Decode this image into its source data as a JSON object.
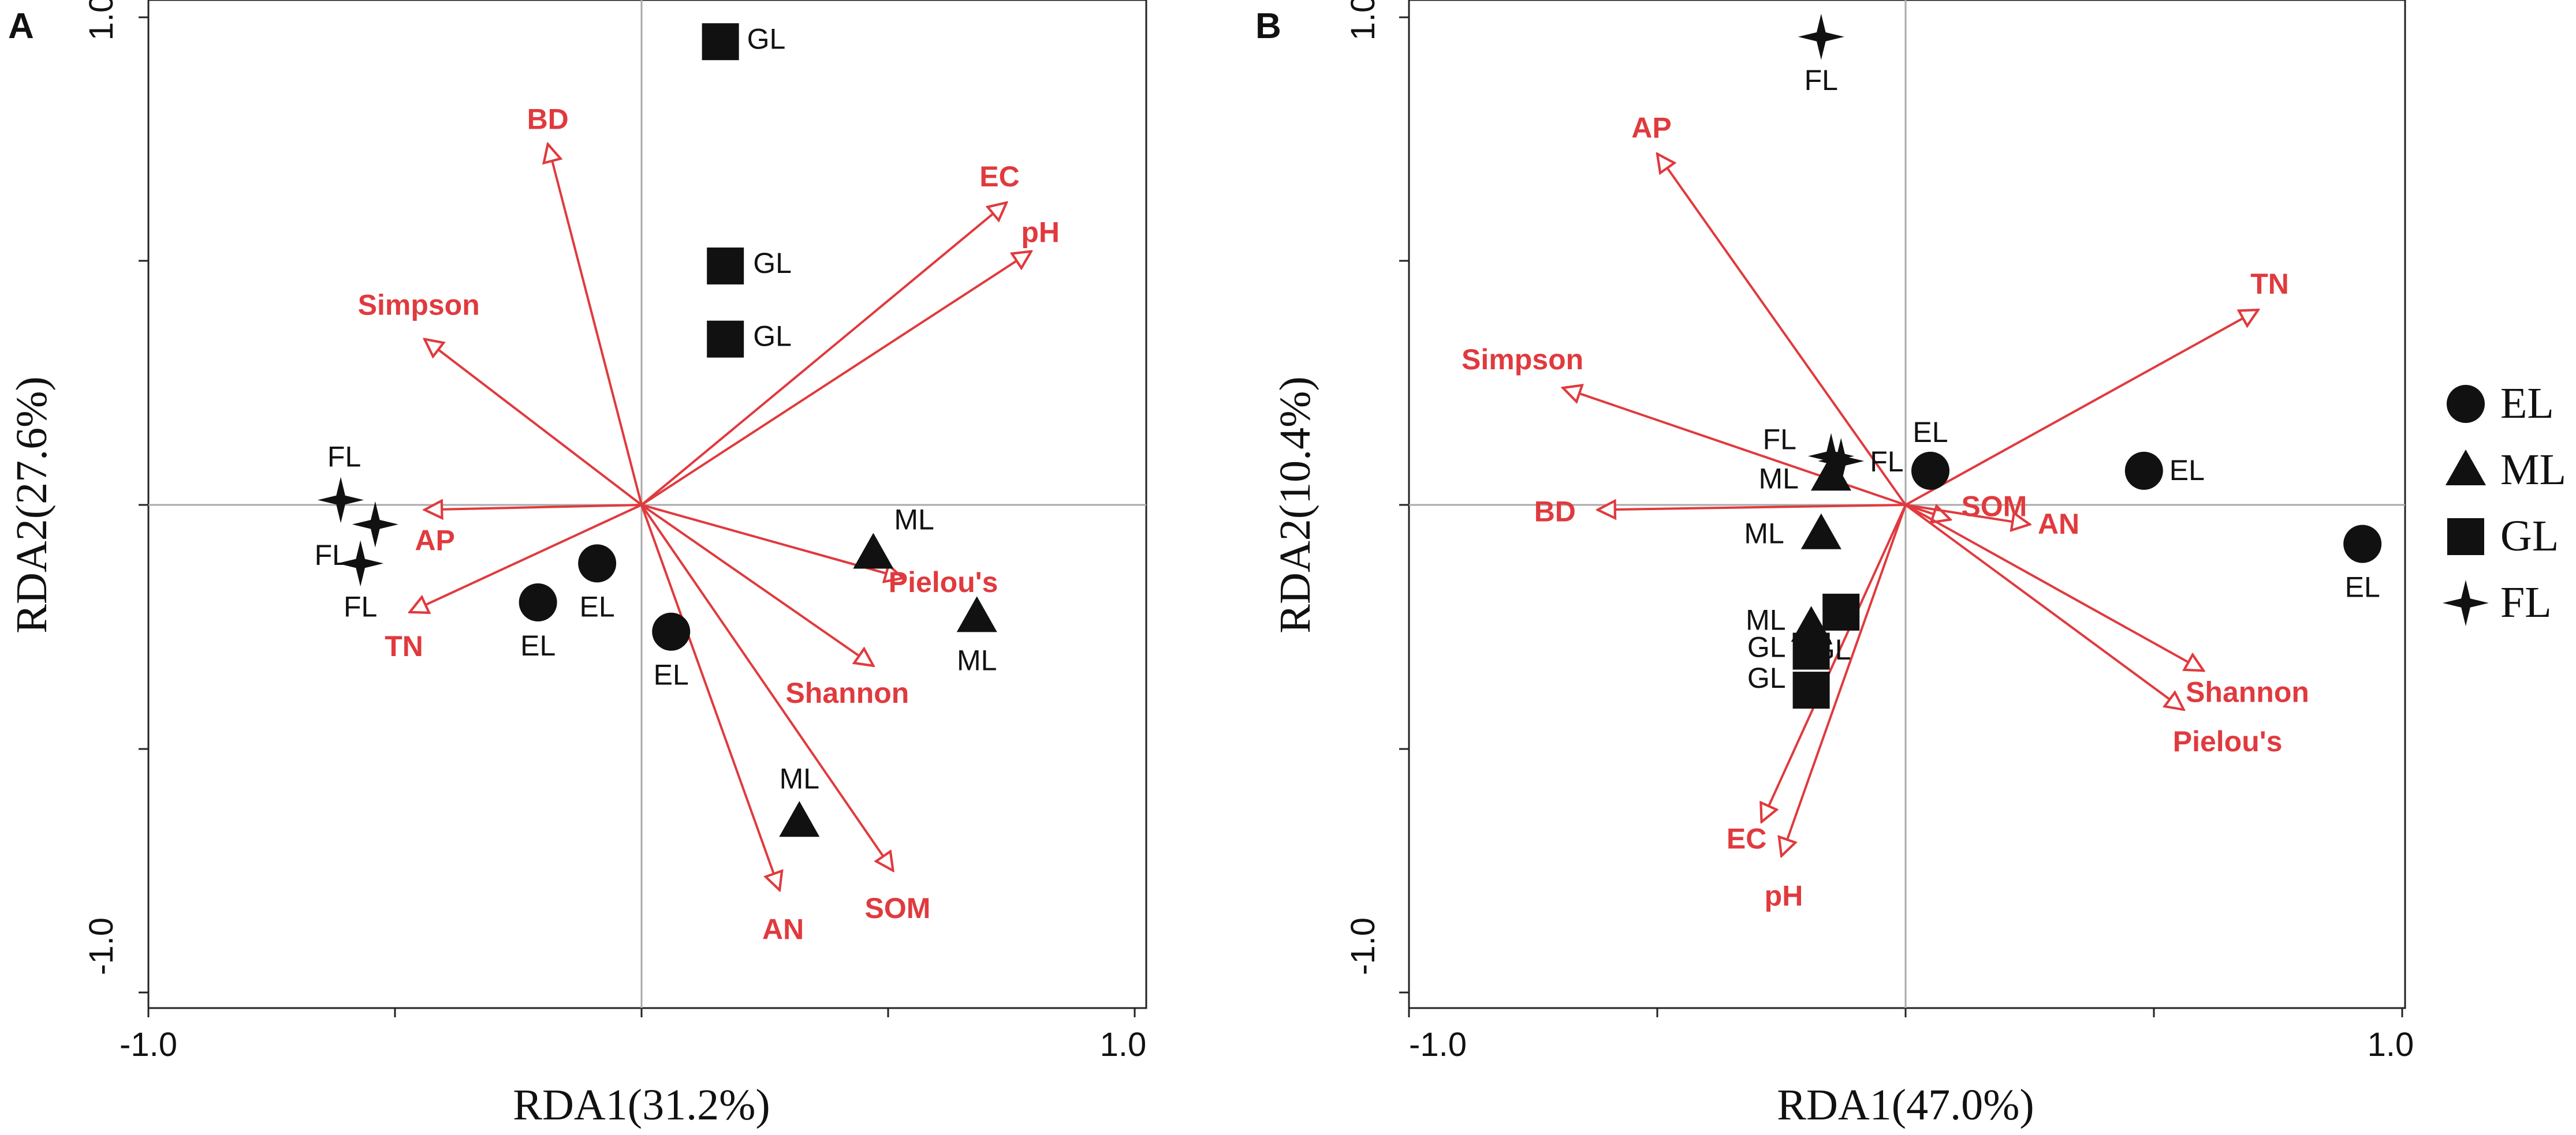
{
  "colors": {
    "vector": "#e03a3e",
    "marker": "#111111",
    "axis": "#222222",
    "zero_line": "#aaaaaa"
  },
  "chart_data": [
    {
      "panel": "A",
      "type": "scatter",
      "xlabel": "RDA1(31.2%)",
      "ylabel": "RDA2(27.6%)",
      "xlim": [
        -1.0,
        1.0
      ],
      "ylim": [
        -1.0,
        1.0
      ],
      "xticks": [
        "-1.0",
        "1.0"
      ],
      "yticks": [
        "1.0",
        "-1.0"
      ],
      "vectors": [
        {
          "name": "BD",
          "x": -0.19,
          "y": 0.74
        },
        {
          "name": "EC",
          "x": 0.74,
          "y": 0.62
        },
        {
          "name": "pH",
          "x": 0.79,
          "y": 0.52
        },
        {
          "name": "Simpson",
          "x": -0.44,
          "y": 0.34
        },
        {
          "name": "AP",
          "x": -0.44,
          "y": -0.01
        },
        {
          "name": "TN",
          "x": -0.47,
          "y": -0.22
        },
        {
          "name": "Pielou's",
          "x": 0.53,
          "y": -0.15
        },
        {
          "name": "Shannon",
          "x": 0.47,
          "y": -0.33
        },
        {
          "name": "AN",
          "x": 0.28,
          "y": -0.79
        },
        {
          "name": "SOM",
          "x": 0.51,
          "y": -0.75
        }
      ],
      "points": [
        {
          "group": "GL",
          "x": 0.16,
          "y": 0.95,
          "label": "GL"
        },
        {
          "group": "GL",
          "x": 0.17,
          "y": 0.49,
          "label": "GL"
        },
        {
          "group": "GL",
          "x": 0.17,
          "y": 0.34,
          "label": "GL"
        },
        {
          "group": "FL",
          "x": -0.61,
          "y": 0.01,
          "label": "FL"
        },
        {
          "group": "FL",
          "x": -0.54,
          "y": -0.04,
          "label": "FL"
        },
        {
          "group": "FL",
          "x": -0.57,
          "y": -0.12,
          "label": "FL"
        },
        {
          "group": "EL",
          "x": -0.21,
          "y": -0.2,
          "label": "EL"
        },
        {
          "group": "EL",
          "x": -0.09,
          "y": -0.12,
          "label": "EL"
        },
        {
          "group": "EL",
          "x": 0.06,
          "y": -0.26,
          "label": "EL"
        },
        {
          "group": "ML",
          "x": 0.47,
          "y": -0.1,
          "label": "ML"
        },
        {
          "group": "ML",
          "x": 0.68,
          "y": -0.23,
          "label": "ML"
        },
        {
          "group": "ML",
          "x": 0.32,
          "y": -0.65,
          "label": "ML"
        }
      ]
    },
    {
      "panel": "B",
      "type": "scatter",
      "xlabel": "RDA1(47.0%)",
      "ylabel": "RDA2(10.4%)",
      "xlim": [
        -1.0,
        1.0
      ],
      "ylim": [
        -1.0,
        1.0
      ],
      "xticks": [
        "-1.0",
        "1.0"
      ],
      "yticks": [
        "1.0",
        "-1.0"
      ],
      "vectors": [
        {
          "name": "AP",
          "x": -0.5,
          "y": 0.72
        },
        {
          "name": "TN",
          "x": 0.71,
          "y": 0.4
        },
        {
          "name": "Simpson",
          "x": -0.69,
          "y": 0.24
        },
        {
          "name": "SOM",
          "x": 0.09,
          "y": -0.03
        },
        {
          "name": "AN",
          "x": 0.25,
          "y": -0.04
        },
        {
          "name": "BD",
          "x": -0.62,
          "y": -0.01
        },
        {
          "name": "Shannon",
          "x": 0.6,
          "y": -0.34
        },
        {
          "name": "Pielou's",
          "x": 0.56,
          "y": -0.42
        },
        {
          "name": "EC",
          "x": -0.29,
          "y": -0.65
        },
        {
          "name": "pH",
          "x": -0.25,
          "y": -0.72
        }
      ],
      "points": [
        {
          "group": "FL",
          "x": -0.17,
          "y": 0.96,
          "label": "FL"
        },
        {
          "group": "FL",
          "x": -0.15,
          "y": 0.1,
          "label": "FL"
        },
        {
          "group": "FL",
          "x": -0.13,
          "y": 0.09,
          "label": "FL"
        },
        {
          "group": "ML",
          "x": -0.15,
          "y": 0.06,
          "label": "ML"
        },
        {
          "group": "ML",
          "x": -0.17,
          "y": -0.06,
          "label": "ML"
        },
        {
          "group": "ML",
          "x": -0.19,
          "y": -0.25,
          "label": "ML"
        },
        {
          "group": "GL",
          "x": -0.13,
          "y": -0.22,
          "label": "GL"
        },
        {
          "group": "GL",
          "x": -0.19,
          "y": -0.3,
          "label": "GL"
        },
        {
          "group": "GL",
          "x": -0.19,
          "y": -0.38,
          "label": "GL"
        },
        {
          "group": "EL",
          "x": 0.05,
          "y": 0.07,
          "label": "EL"
        },
        {
          "group": "EL",
          "x": 0.48,
          "y": 0.07,
          "label": "EL"
        },
        {
          "group": "EL",
          "x": 0.92,
          "y": -0.08,
          "label": "EL"
        }
      ]
    }
  ],
  "legend": [
    {
      "group": "EL",
      "label": "EL",
      "shape": "circle"
    },
    {
      "group": "ML",
      "label": "ML",
      "shape": "triangle"
    },
    {
      "group": "GL",
      "label": "GL",
      "shape": "square"
    },
    {
      "group": "FL",
      "label": "FL",
      "shape": "star"
    }
  ]
}
